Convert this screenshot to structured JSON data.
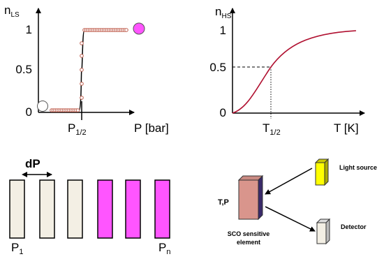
{
  "plot_left": {
    "y_label": {
      "main": "n",
      "sub": "LS"
    },
    "y_ticks": [
      "1",
      "0.5",
      "0"
    ],
    "x_marker": {
      "main": "P",
      "sub": "1/2"
    },
    "x_label": "P [bar]"
  },
  "plot_right": {
    "y_label": {
      "main": "n",
      "sub": "HS"
    },
    "y_ticks": [
      "1",
      "0.5",
      "0"
    ],
    "x_marker": {
      "main": "T",
      "sub": "1/2"
    },
    "x_label": "T [K]"
  },
  "pressure_cells": {
    "step_label": "dP",
    "first": {
      "main": "P",
      "sub": "1"
    },
    "last": {
      "main": "P",
      "sub": "n"
    }
  },
  "setup": {
    "source": "Light source",
    "conditions": "T,P",
    "element": [
      "SCO sensitive",
      "element"
    ],
    "detector": "Detector"
  }
}
